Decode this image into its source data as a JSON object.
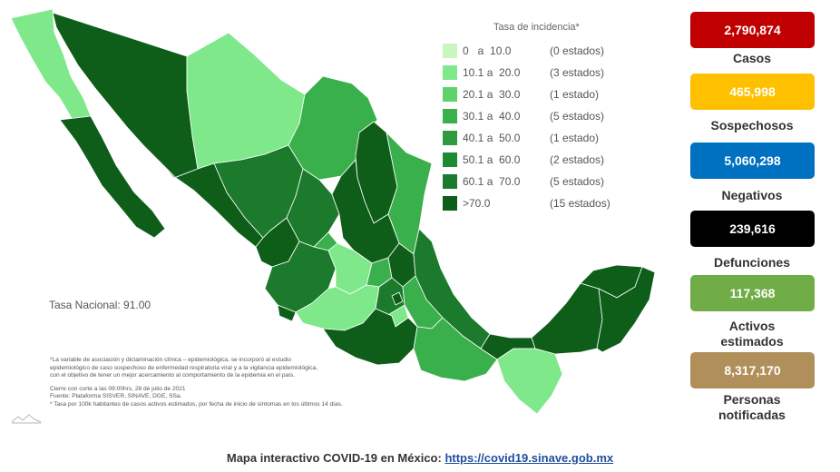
{
  "legend": {
    "title": "Tasa de incidencia*",
    "rows": [
      {
        "range": "0   a  10.0",
        "count": "(0 estados)",
        "color": "#c9f5c0"
      },
      {
        "range": "10.1 a  20.0",
        "count": "(3 estados)",
        "color": "#7ee88a"
      },
      {
        "range": "20.1 a  30.0",
        "count": "(1 estado)",
        "color": "#5fd36b"
      },
      {
        "range": "30.1 a  40.0",
        "count": "(5 estados)",
        "color": "#3ab04c"
      },
      {
        "range": "40.1 a  50.0",
        "count": "(1 estado)",
        "color": "#2e9c3e"
      },
      {
        "range": "50.1 a  60.0",
        "count": "(2 estados)",
        "color": "#1e8a33"
      },
      {
        "range": "60.1 a  70.0",
        "count": "(5 estados)",
        "color": "#1b7a2b"
      },
      {
        "range": ">70.0",
        "count": "(15 estados)",
        "color": "#0e5e1a"
      }
    ]
  },
  "tasa_nacional": "Tasa Nacional: 91.00",
  "notes": {
    "line1": "*La variable de asociación y dictaminación clínica – epidemiológica, se incorporó al estudio",
    "line2": "epidemiológico de caso sospechoso de enfermedad respiratoria viral y a la vigilancia epidemiológica,",
    "line3": "con el objetivo de tener un mejor acercamiento al comportamiento de la epidemia en el país.",
    "line4": "Cierre con corte a las 09:00hrs, 28 de julio de 2021",
    "line5": "Fuente: Plataforma SISVER, SINAVE, DGE, SSa.",
    "line6": "* Tasa por 100k habitantes de casos activos estimados, por fecha de inicio de síntomas en los últimos 14 días."
  },
  "stats": [
    {
      "value": "2,790,874",
      "label": "Casos",
      "color": "#c00000"
    },
    {
      "value": "465,998",
      "label": "Sospechosos",
      "color": "#ffc000"
    },
    {
      "value": "5,060,298",
      "label": "Negativos",
      "color": "#0070c0"
    },
    {
      "value": "239,616",
      "label": "Defunciones",
      "color": "#000000"
    },
    {
      "value": "117,368",
      "label": "Activos estimados",
      "color": "#70ad47"
    },
    {
      "value": "8,317,170",
      "label": "Personas notificadas",
      "color": "#b08f5a"
    }
  ],
  "footer": {
    "text": "Mapa interactivo COVID-19 en México: ",
    "link": "https://covid19.sinave.gob.mx"
  },
  "map": {
    "light": "#7ee88a",
    "mid": "#3ab04c",
    "dark": "#0e5e1a",
    "darker": "#1b7a2b"
  }
}
